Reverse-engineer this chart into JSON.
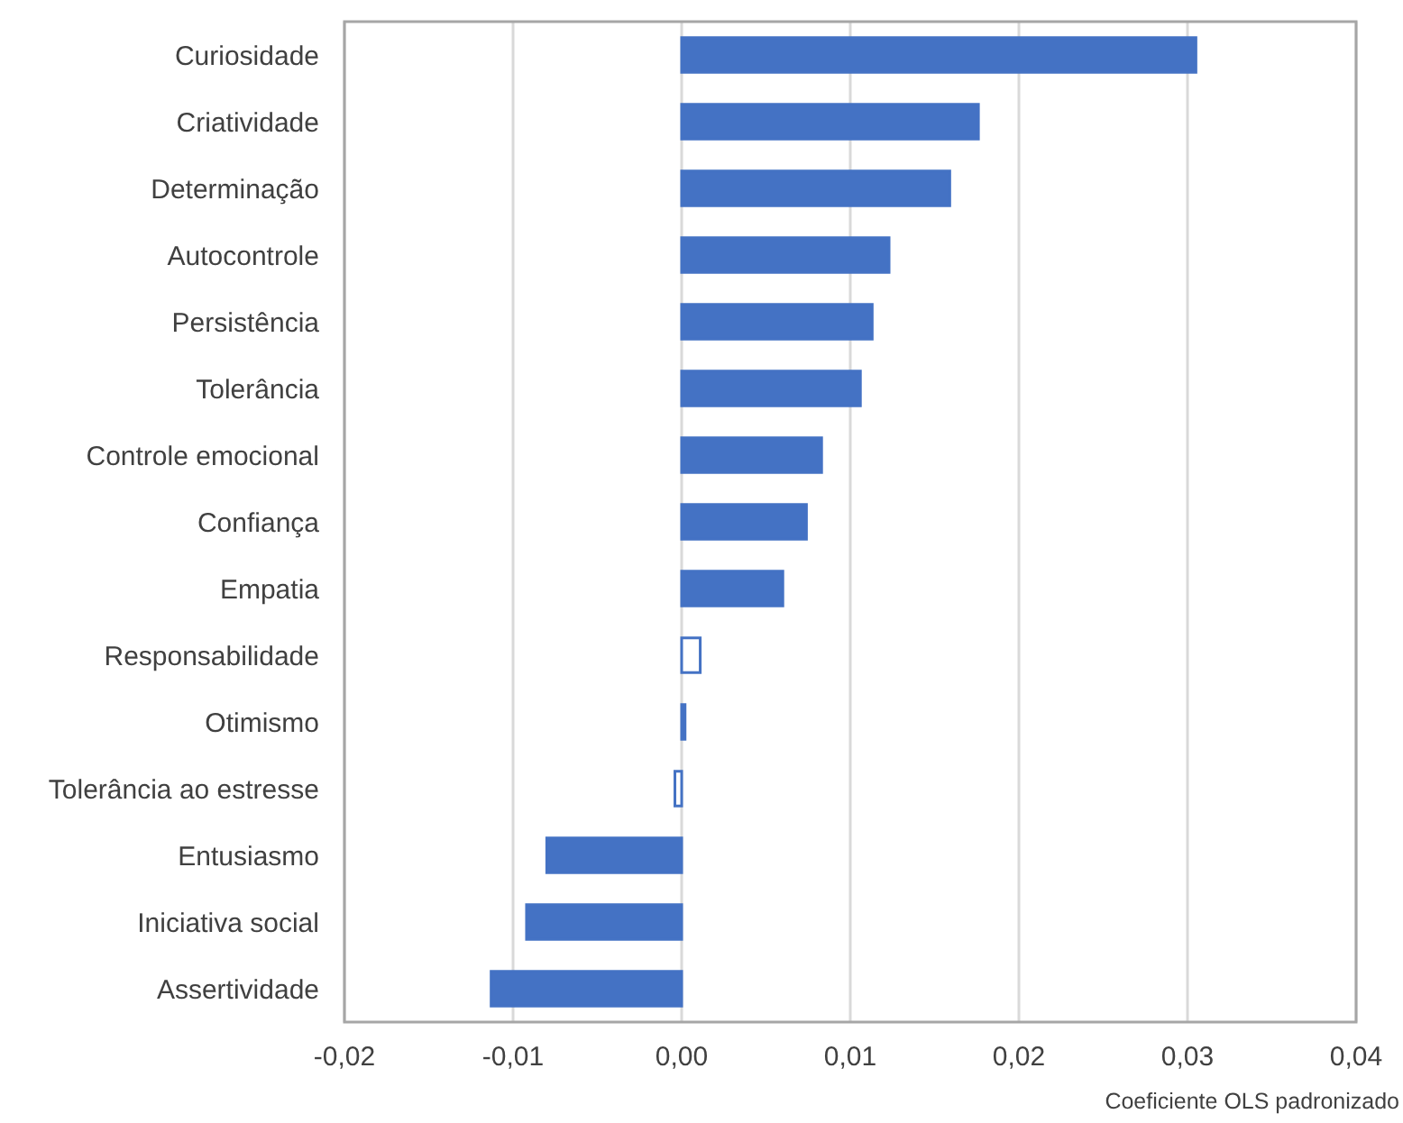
{
  "chart_data": {
    "type": "bar",
    "orientation": "horizontal",
    "categories": [
      "Curiosidade",
      "Criatividade",
      "Determinação",
      "Autocontrole",
      "Persistência",
      "Tolerância",
      "Controle emocional",
      "Confiança",
      "Empatia",
      "Responsabilidade",
      "Otimismo",
      "Tolerância ao estresse",
      "Entusiasmo",
      "Iniciativa social",
      "Assertividade"
    ],
    "series": [
      {
        "color": "#4472c4",
        "colors": [
          "#4472c4",
          "#4472c4",
          "#4472c4",
          "#4472c4",
          "#4472c4",
          "#4472c4",
          "#4472c4",
          "#4472c4",
          "#4472c4",
          "#ffffff",
          "#4472c4",
          "#ffffff",
          "#4472c4",
          "#4472c4",
          "#4472c4"
        ],
        "values": [
          0.0305,
          0.0176,
          0.0159,
          0.0123,
          0.0113,
          0.0106,
          0.0083,
          0.0074,
          0.006,
          0.0011,
          0.0002,
          -0.0004,
          -0.008,
          -0.0092,
          -0.0113
        ]
      }
    ],
    "xlim": [
      -0.02,
      0.04
    ],
    "xticks": [
      {
        "value": -0.02,
        "label": "-0,02"
      },
      {
        "value": -0.01,
        "label": "-0,01"
      },
      {
        "value": 0,
        "label": "0,00"
      },
      {
        "value": 0.01,
        "label": "0,01"
      },
      {
        "value": 0.02,
        "label": "0,02"
      },
      {
        "value": 0.03,
        "label": "0,03"
      },
      {
        "value": 0.04,
        "label": "0,04"
      }
    ],
    "xlabel": "Coeficiente OLS padronizado",
    "grid": "x"
  }
}
